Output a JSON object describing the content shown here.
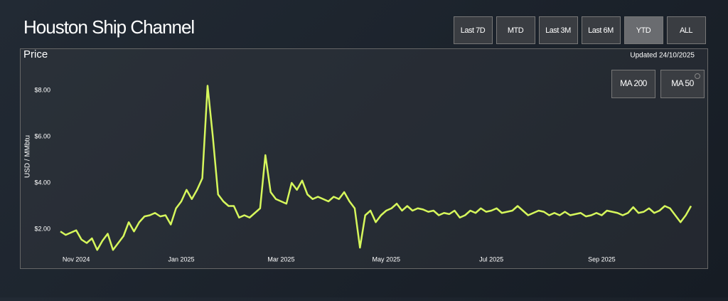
{
  "header": {
    "title": "Houston Ship Channel"
  },
  "range_buttons": [
    "Last 7D",
    "MTD",
    "Last 3M",
    "Last 6M",
    "YTD",
    "ALL"
  ],
  "selected_range": 4,
  "updated": "Updated 24/10/2025",
  "ma_buttons": [
    "MA 200",
    "MA 50"
  ],
  "chart_data": {
    "type": "line",
    "title": "Price",
    "ylabel": "USD / MMbtu",
    "color": "#d6f75c",
    "values": [
      1.9,
      1.75,
      1.85,
      1.95,
      1.55,
      1.4,
      1.6,
      1.1,
      1.5,
      1.8,
      1.1,
      1.4,
      1.7,
      2.3,
      1.9,
      2.3,
      2.55,
      2.6,
      2.7,
      2.55,
      2.6,
      2.2,
      2.9,
      3.2,
      3.7,
      3.3,
      3.7,
      4.2,
      8.2,
      6.0,
      3.5,
      3.2,
      3.0,
      3.0,
      2.5,
      2.6,
      2.5,
      2.7,
      2.9,
      5.2,
      3.6,
      3.3,
      3.2,
      3.1,
      4.0,
      3.7,
      4.1,
      3.5,
      3.3,
      3.4,
      3.3,
      3.2,
      3.4,
      3.3,
      3.6,
      3.2,
      2.9,
      1.2,
      2.6,
      2.8,
      2.3,
      2.6,
      2.8,
      2.9,
      3.1,
      2.8,
      3.0,
      2.8,
      2.9,
      2.85,
      2.75,
      2.8,
      2.6,
      2.7,
      2.65,
      2.8,
      2.5,
      2.6,
      2.8,
      2.7,
      2.9,
      2.75,
      2.8,
      2.9,
      2.7,
      2.75,
      2.8,
      3.0,
      2.8,
      2.6,
      2.7,
      2.8,
      2.75,
      2.6,
      2.7,
      2.6,
      2.75,
      2.6,
      2.65,
      2.7,
      2.55,
      2.6,
      2.7,
      2.6,
      2.8,
      2.75,
      2.7,
      2.6,
      2.7,
      2.95,
      2.7,
      2.75,
      2.9,
      2.7,
      2.8,
      3.0,
      2.9,
      2.6,
      2.3,
      2.6,
      3.0
    ],
    "xlim": [
      0,
      120
    ],
    "xticks": [
      {
        "value": 3,
        "label": "Nov 2024"
      },
      {
        "value": 23,
        "label": "Jan 2025"
      },
      {
        "value": 42,
        "label": "Mar 2025"
      },
      {
        "value": 62,
        "label": "May 2025"
      },
      {
        "value": 82,
        "label": "Jul 2025"
      },
      {
        "value": 103,
        "label": "Sep 2025"
      }
    ],
    "ylim": [
      1.0,
      9.0
    ],
    "yticks": [
      {
        "value": 2,
        "label": "$2.00"
      },
      {
        "value": 4,
        "label": "$4.00"
      },
      {
        "value": 6,
        "label": "$6.00"
      },
      {
        "value": 8,
        "label": "$8.00"
      }
    ]
  }
}
